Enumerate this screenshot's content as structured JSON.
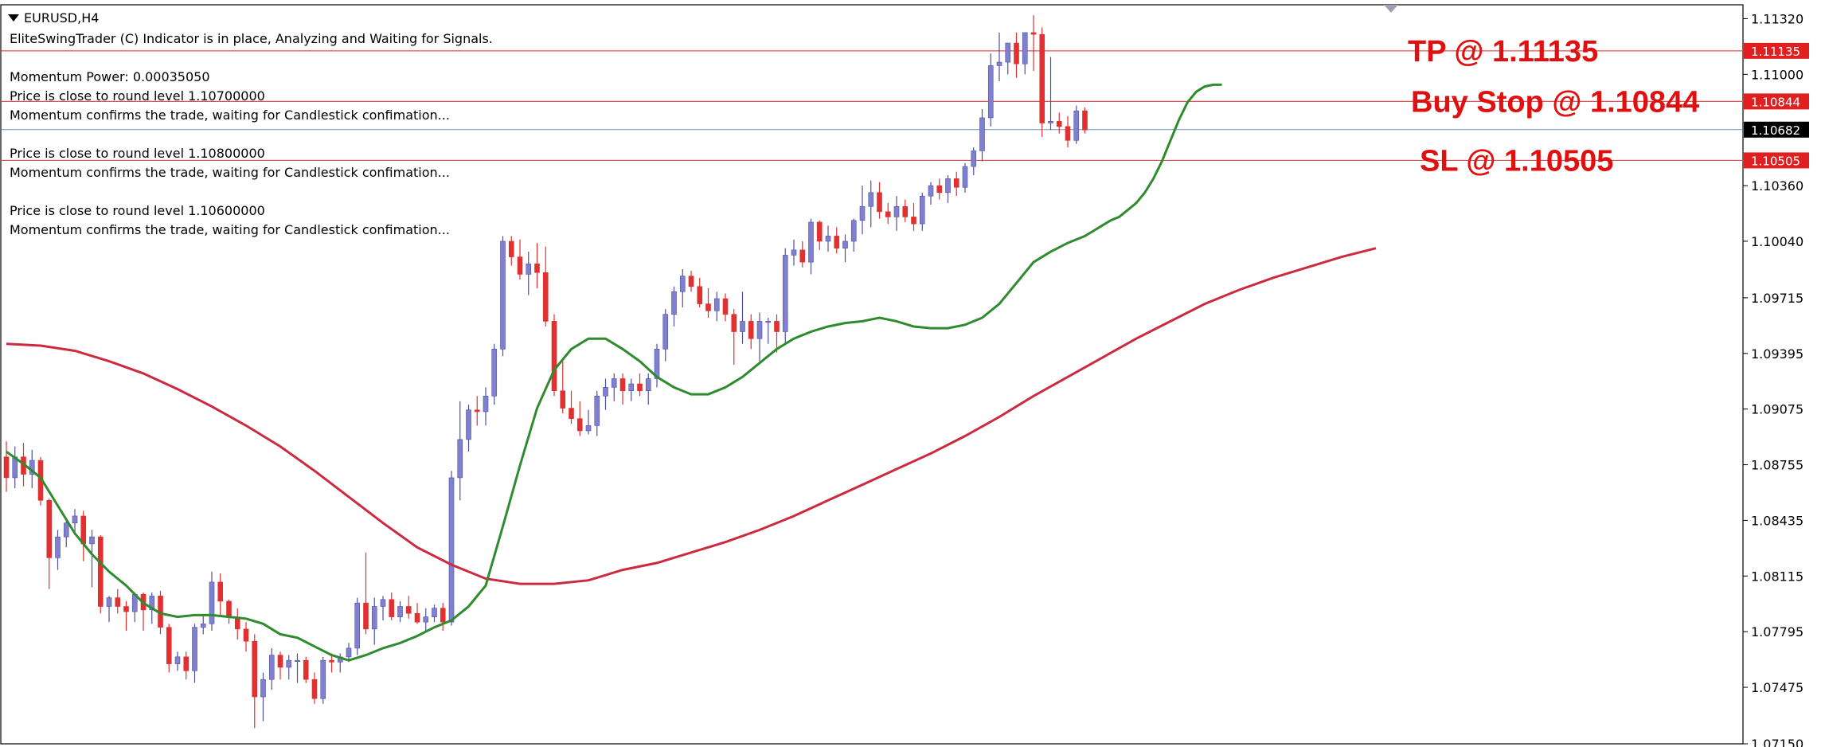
{
  "header": {
    "symbol": "EURUSD,H4",
    "status": "EliteSwingTrader (C) Indicator is in place, Analyzing and Waiting for Signals."
  },
  "messages": [
    "Momentum Power: 0.00035050",
    "Price is close to round level 1.10700000",
    "Momentum confirms the trade, waiting for Candlestick confimation...",
    "Price is close to round level 1.10800000",
    "Momentum confirms the trade, waiting for Candlestick confimation...",
    "Price is close to round level 1.10600000",
    "Momentum confirms the trade, waiting for Candlestick confimation..."
  ],
  "colors": {
    "bull": "#8080d0",
    "bear": "#e03030",
    "fast_ma": "#2e8b2e",
    "slow_ma": "#cc2a40",
    "level_line": "#e05050",
    "current_line": "#7090c0",
    "tag_red": "#e02020",
    "tag_current": "#000000"
  },
  "chart_data": {
    "type": "candlestick",
    "symbol": "EURUSD",
    "timeframe": "H4",
    "ylim": [
      1.0715,
      1.114
    ],
    "y_ticks": [
      "1.11320",
      "1.11000",
      "1.10360",
      "1.10040",
      "1.09715",
      "1.09395",
      "1.09075",
      "1.08755",
      "1.08435",
      "1.08115",
      "1.07795",
      "1.07475",
      "1.07150"
    ],
    "levels": [
      {
        "name": "TP",
        "value": 1.11135,
        "tag": "1.11135",
        "label": "TP @ 1.11135"
      },
      {
        "name": "Buy Stop",
        "value": 1.10844,
        "tag": "1.10844",
        "label": "Buy Stop @ 1.10844"
      },
      {
        "name": "Current",
        "value": 1.10682,
        "tag": "1.10682",
        "label": ""
      },
      {
        "name": "SL",
        "value": 1.10505,
        "tag": "1.10505",
        "label": "SL @ 1.10505"
      }
    ],
    "candles": [
      [
        1.088,
        1.0889,
        1.086,
        1.0868
      ],
      [
        1.0868,
        1.0886,
        1.0862,
        1.088
      ],
      [
        1.088,
        1.0888,
        1.0863,
        1.087
      ],
      [
        1.087,
        1.0884,
        1.0862,
        1.0878
      ],
      [
        1.0878,
        1.088,
        1.0852,
        1.0855
      ],
      [
        1.0855,
        1.0856,
        1.0804,
        1.0822
      ],
      [
        1.0822,
        1.0838,
        1.0815,
        1.0834
      ],
      [
        1.0834,
        1.0845,
        1.0828,
        1.0842
      ],
      [
        1.0842,
        1.085,
        1.0835,
        1.0846
      ],
      [
        1.0846,
        1.0849,
        1.082,
        1.083
      ],
      [
        1.083,
        1.0838,
        1.0805,
        1.0834
      ],
      [
        1.0834,
        1.0835,
        1.079,
        1.0794
      ],
      [
        1.0794,
        1.08,
        1.0785,
        1.0799
      ],
      [
        1.0799,
        1.0804,
        1.079,
        1.0794
      ],
      [
        1.0794,
        1.0797,
        1.078,
        1.0791
      ],
      [
        1.0791,
        1.0802,
        1.0785,
        1.0801
      ],
      [
        1.0801,
        1.0802,
        1.078,
        1.0792
      ],
      [
        1.0792,
        1.0802,
        1.0784,
        1.08
      ],
      [
        1.08,
        1.0803,
        1.0778,
        1.0782
      ],
      [
        1.0782,
        1.0784,
        1.0756,
        1.0761
      ],
      [
        1.0761,
        1.0768,
        1.0757,
        1.0765
      ],
      [
        1.0765,
        1.0768,
        1.0752,
        1.0757
      ],
      [
        1.0757,
        1.0784,
        1.075,
        1.0782
      ],
      [
        1.0782,
        1.0789,
        1.0778,
        1.0784
      ],
      [
        1.0784,
        1.0814,
        1.078,
        1.0808
      ],
      [
        1.0808,
        1.0813,
        1.0788,
        1.0797
      ],
      [
        1.0797,
        1.0798,
        1.0784,
        1.0788
      ],
      [
        1.0788,
        1.0793,
        1.0775,
        1.0781
      ],
      [
        1.0781,
        1.0785,
        1.0768,
        1.0774
      ],
      [
        1.0774,
        1.0778,
        1.0724,
        1.0742
      ],
      [
        1.0742,
        1.0756,
        1.0728,
        1.0752
      ],
      [
        1.0752,
        1.077,
        1.0746,
        1.0766
      ],
      [
        1.0766,
        1.0768,
        1.0752,
        1.0759
      ],
      [
        1.0759,
        1.0766,
        1.0752,
        1.0763
      ],
      [
        1.0763,
        1.0767,
        1.075,
        1.0763
      ],
      [
        1.0763,
        1.0765,
        1.075,
        1.0752
      ],
      [
        1.0752,
        1.0756,
        1.0738,
        1.0741
      ],
      [
        1.0741,
        1.0765,
        1.0738,
        1.0763
      ],
      [
        1.0763,
        1.0767,
        1.0756,
        1.0762
      ],
      [
        1.0762,
        1.0767,
        1.0756,
        1.0765
      ],
      [
        1.0765,
        1.0773,
        1.0762,
        1.077
      ],
      [
        1.077,
        1.0799,
        1.0766,
        1.0796
      ],
      [
        1.0796,
        1.0825,
        1.0778,
        1.0781
      ],
      [
        1.0781,
        1.0799,
        1.0772,
        1.0794
      ],
      [
        1.0794,
        1.08,
        1.0786,
        1.0798
      ],
      [
        1.0798,
        1.0802,
        1.0786,
        1.0788
      ],
      [
        1.0788,
        1.0797,
        1.0785,
        1.0794
      ],
      [
        1.0794,
        1.08,
        1.0787,
        1.079
      ],
      [
        1.079,
        1.0796,
        1.0784,
        1.0785
      ],
      [
        1.0785,
        1.0793,
        1.0779,
        1.0788
      ],
      [
        1.0788,
        1.0795,
        1.0785,
        1.0793
      ],
      [
        1.0793,
        1.0796,
        1.078,
        1.0785
      ],
      [
        1.0785,
        1.0872,
        1.0783,
        1.0868
      ],
      [
        1.0868,
        1.0912,
        1.0855,
        1.089
      ],
      [
        1.089,
        1.091,
        1.0883,
        1.0907
      ],
      [
        1.0907,
        1.0915,
        1.0898,
        1.0906
      ],
      [
        1.0906,
        1.092,
        1.0898,
        1.0915
      ],
      [
        1.0915,
        1.0945,
        1.091,
        1.0942
      ],
      [
        1.0942,
        1.1007,
        1.0938,
        1.1004
      ],
      [
        1.1004,
        1.1007,
        1.099,
        1.0995
      ],
      [
        1.0995,
        1.1005,
        1.0982,
        1.0985
      ],
      [
        1.0985,
        1.0998,
        1.0973,
        1.0991
      ],
      [
        1.0991,
        1.1003,
        1.0977,
        1.0986
      ],
      [
        1.0986,
        1.1001,
        1.0955,
        1.0958
      ],
      [
        1.0958,
        1.0962,
        1.0915,
        1.0918
      ],
      [
        1.0918,
        1.0935,
        1.0905,
        1.0908
      ],
      [
        1.0908,
        1.0918,
        1.0899,
        1.0902
      ],
      [
        1.0902,
        1.0912,
        1.0892,
        1.0895
      ],
      [
        1.0895,
        1.0907,
        1.0893,
        1.0898
      ],
      [
        1.0898,
        1.0918,
        1.0892,
        1.0915
      ],
      [
        1.0915,
        1.0925,
        1.0907,
        1.092
      ],
      [
        1.092,
        1.0928,
        1.0912,
        1.0925
      ],
      [
        1.0925,
        1.0928,
        1.091,
        1.0918
      ],
      [
        1.0918,
        1.0925,
        1.0912,
        1.0922
      ],
      [
        1.0922,
        1.0928,
        1.0915,
        1.0918
      ],
      [
        1.0918,
        1.0928,
        1.091,
        1.0925
      ],
      [
        1.0925,
        1.0945,
        1.092,
        1.0942
      ],
      [
        1.0942,
        1.0965,
        1.0935,
        1.0962
      ],
      [
        1.0962,
        1.0978,
        1.0955,
        1.0975
      ],
      [
        1.0975,
        1.0988,
        1.0966,
        1.0984
      ],
      [
        1.0984,
        1.0987,
        1.0975,
        1.0978
      ],
      [
        1.0978,
        1.0983,
        1.0966,
        1.0968
      ],
      [
        1.0968,
        1.0977,
        1.096,
        1.0964
      ],
      [
        1.0964,
        1.0975,
        1.0958,
        1.0971
      ],
      [
        1.0971,
        1.0974,
        1.0958,
        1.0962
      ],
      [
        1.0962,
        1.0965,
        1.0933,
        1.0952
      ],
      [
        1.0952,
        1.0975,
        1.0945,
        1.0958
      ],
      [
        1.0958,
        1.0962,
        1.0942,
        1.0948
      ],
      [
        1.0948,
        1.0963,
        1.0935,
        1.0958
      ],
      [
        1.0958,
        1.096,
        1.0945,
        1.0958
      ],
      [
        1.0958,
        1.0962,
        1.094,
        1.0952
      ],
      [
        1.0952,
        1.1,
        1.0945,
        1.0996
      ],
      [
        1.0996,
        1.1005,
        1.099,
        1.0999
      ],
      [
        1.0999,
        1.1004,
        1.0989,
        1.0992
      ],
      [
        1.0992,
        1.1017,
        1.0985,
        1.1015
      ],
      [
        1.1015,
        1.1016,
        1.0999,
        1.1004
      ],
      [
        1.1004,
        1.1013,
        1.0998,
        1.1007
      ],
      [
        1.1007,
        1.1012,
        1.0997,
        1.1
      ],
      [
        1.1,
        1.1008,
        1.0992,
        1.1004
      ],
      [
        1.1004,
        1.1017,
        1.0998,
        1.1016
      ],
      [
        1.1016,
        1.1036,
        1.1008,
        1.1024
      ],
      [
        1.1024,
        1.1039,
        1.1012,
        1.1032
      ],
      [
        1.1032,
        1.1038,
        1.1017,
        1.1021
      ],
      [
        1.1021,
        1.1026,
        1.1014,
        1.1018
      ],
      [
        1.1018,
        1.103,
        1.101,
        1.1024
      ],
      [
        1.1024,
        1.1028,
        1.1015,
        1.1018
      ],
      [
        1.1018,
        1.1026,
        1.101,
        1.1014
      ],
      [
        1.1014,
        1.1032,
        1.101,
        1.103
      ],
      [
        1.103,
        1.1038,
        1.1025,
        1.1036
      ],
      [
        1.1036,
        1.104,
        1.1028,
        1.1032
      ],
      [
        1.1032,
        1.1042,
        1.1026,
        1.104
      ],
      [
        1.104,
        1.1044,
        1.103,
        1.1035
      ],
      [
        1.1035,
        1.1049,
        1.1032,
        1.1047
      ],
      [
        1.1047,
        1.1058,
        1.1042,
        1.1056
      ],
      [
        1.1056,
        1.108,
        1.105,
        1.1075
      ],
      [
        1.1075,
        1.1112,
        1.107,
        1.1105
      ],
      [
        1.1105,
        1.1124,
        1.1096,
        1.1107
      ],
      [
        1.1107,
        1.1118,
        1.11,
        1.1118
      ],
      [
        1.1118,
        1.1124,
        1.1098,
        1.1106
      ],
      [
        1.1106,
        1.1124,
        1.11,
        1.1124
      ],
      [
        1.1124,
        1.1134,
        1.1102,
        1.1123
      ],
      [
        1.1123,
        1.1127,
        1.1064,
        1.1072
      ],
      [
        1.1072,
        1.111,
        1.1068,
        1.1073
      ],
      [
        1.1073,
        1.1078,
        1.1066,
        1.107
      ],
      [
        1.107,
        1.1076,
        1.1058,
        1.1062
      ],
      [
        1.1062,
        1.1082,
        1.106,
        1.1079
      ],
      [
        1.1079,
        1.1081,
        1.1066,
        1.1068
      ]
    ],
    "fast_ma": [
      1.0883,
      1.0876,
      1.0868,
      1.0852,
      1.0836,
      1.0824,
      1.0814,
      1.0806,
      1.0796,
      1.079,
      1.0788,
      1.0789,
      1.0789,
      1.0788,
      1.0787,
      1.0784,
      1.0778,
      1.0776,
      1.0771,
      1.0766,
      1.0763,
      1.0766,
      1.077,
      1.0773,
      1.0777,
      1.0782,
      1.0786,
      1.0794,
      1.0806,
      1.084,
      1.0875,
      1.0908,
      1.093,
      1.0942,
      1.0948,
      1.0948,
      1.0942,
      1.0935,
      1.0926,
      1.092,
      1.0916,
      1.0916,
      1.092,
      1.0926,
      1.0934,
      1.0942,
      1.0948,
      1.0952,
      1.0955,
      1.0957,
      1.0958,
      1.096,
      1.0958,
      1.0955,
      1.0954,
      1.0954,
      1.0956,
      1.096,
      1.0968,
      1.098,
      1.0992,
      1.0998,
      1.1003,
      1.1007,
      1.101,
      1.1013,
      1.1016,
      1.1018,
      1.1022,
      1.1026,
      1.1032,
      1.104,
      1.105,
      1.1062,
      1.1074,
      1.1084,
      1.109,
      1.1093,
      1.1094,
      1.1094
    ],
    "fast_ma_start": 0,
    "fast_ma_steps": [
      0,
      2,
      4,
      6,
      8,
      10,
      12,
      14,
      16,
      18,
      20,
      22,
      24,
      26,
      28,
      30,
      32,
      34,
      36,
      38,
      40,
      42,
      44,
      46,
      48,
      50,
      52,
      54,
      56,
      58,
      60,
      62,
      64,
      66,
      68,
      70,
      72,
      74,
      76,
      78,
      80,
      82,
      84,
      86,
      88,
      90,
      92,
      94,
      96,
      98,
      100,
      102,
      104,
      106,
      108,
      110,
      112,
      114,
      116,
      118,
      120,
      122,
      124,
      126,
      127,
      128,
      129,
      130,
      131,
      132,
      133,
      134,
      135,
      136,
      137,
      138,
      139,
      140,
      141,
      142
    ],
    "slow_ma": [
      1.0945,
      1.0944,
      1.0941,
      1.0935,
      1.0928,
      1.0919,
      1.0909,
      1.0898,
      1.0886,
      1.0872,
      1.0857,
      1.0842,
      1.0828,
      1.0818,
      1.081,
      1.0807,
      1.0807,
      1.0809,
      1.0815,
      1.0819,
      1.0825,
      1.0831,
      1.0838,
      1.0846,
      1.0855,
      1.0864,
      1.0873,
      1.0882,
      1.0892,
      1.0903,
      1.0915,
      1.0926,
      1.0937,
      1.0948,
      1.0958,
      1.0968,
      1.0976,
      1.0983,
      1.0989,
      1.0995,
      1.1
    ],
    "slow_ma_steps": [
      0,
      4,
      8,
      12,
      16,
      20,
      24,
      28,
      32,
      36,
      40,
      44,
      48,
      52,
      56,
      60,
      64,
      68,
      72,
      76,
      80,
      84,
      88,
      92,
      96,
      100,
      104,
      108,
      112,
      116,
      120,
      124,
      128,
      132,
      136,
      140,
      144,
      148,
      152,
      156,
      160
    ]
  }
}
